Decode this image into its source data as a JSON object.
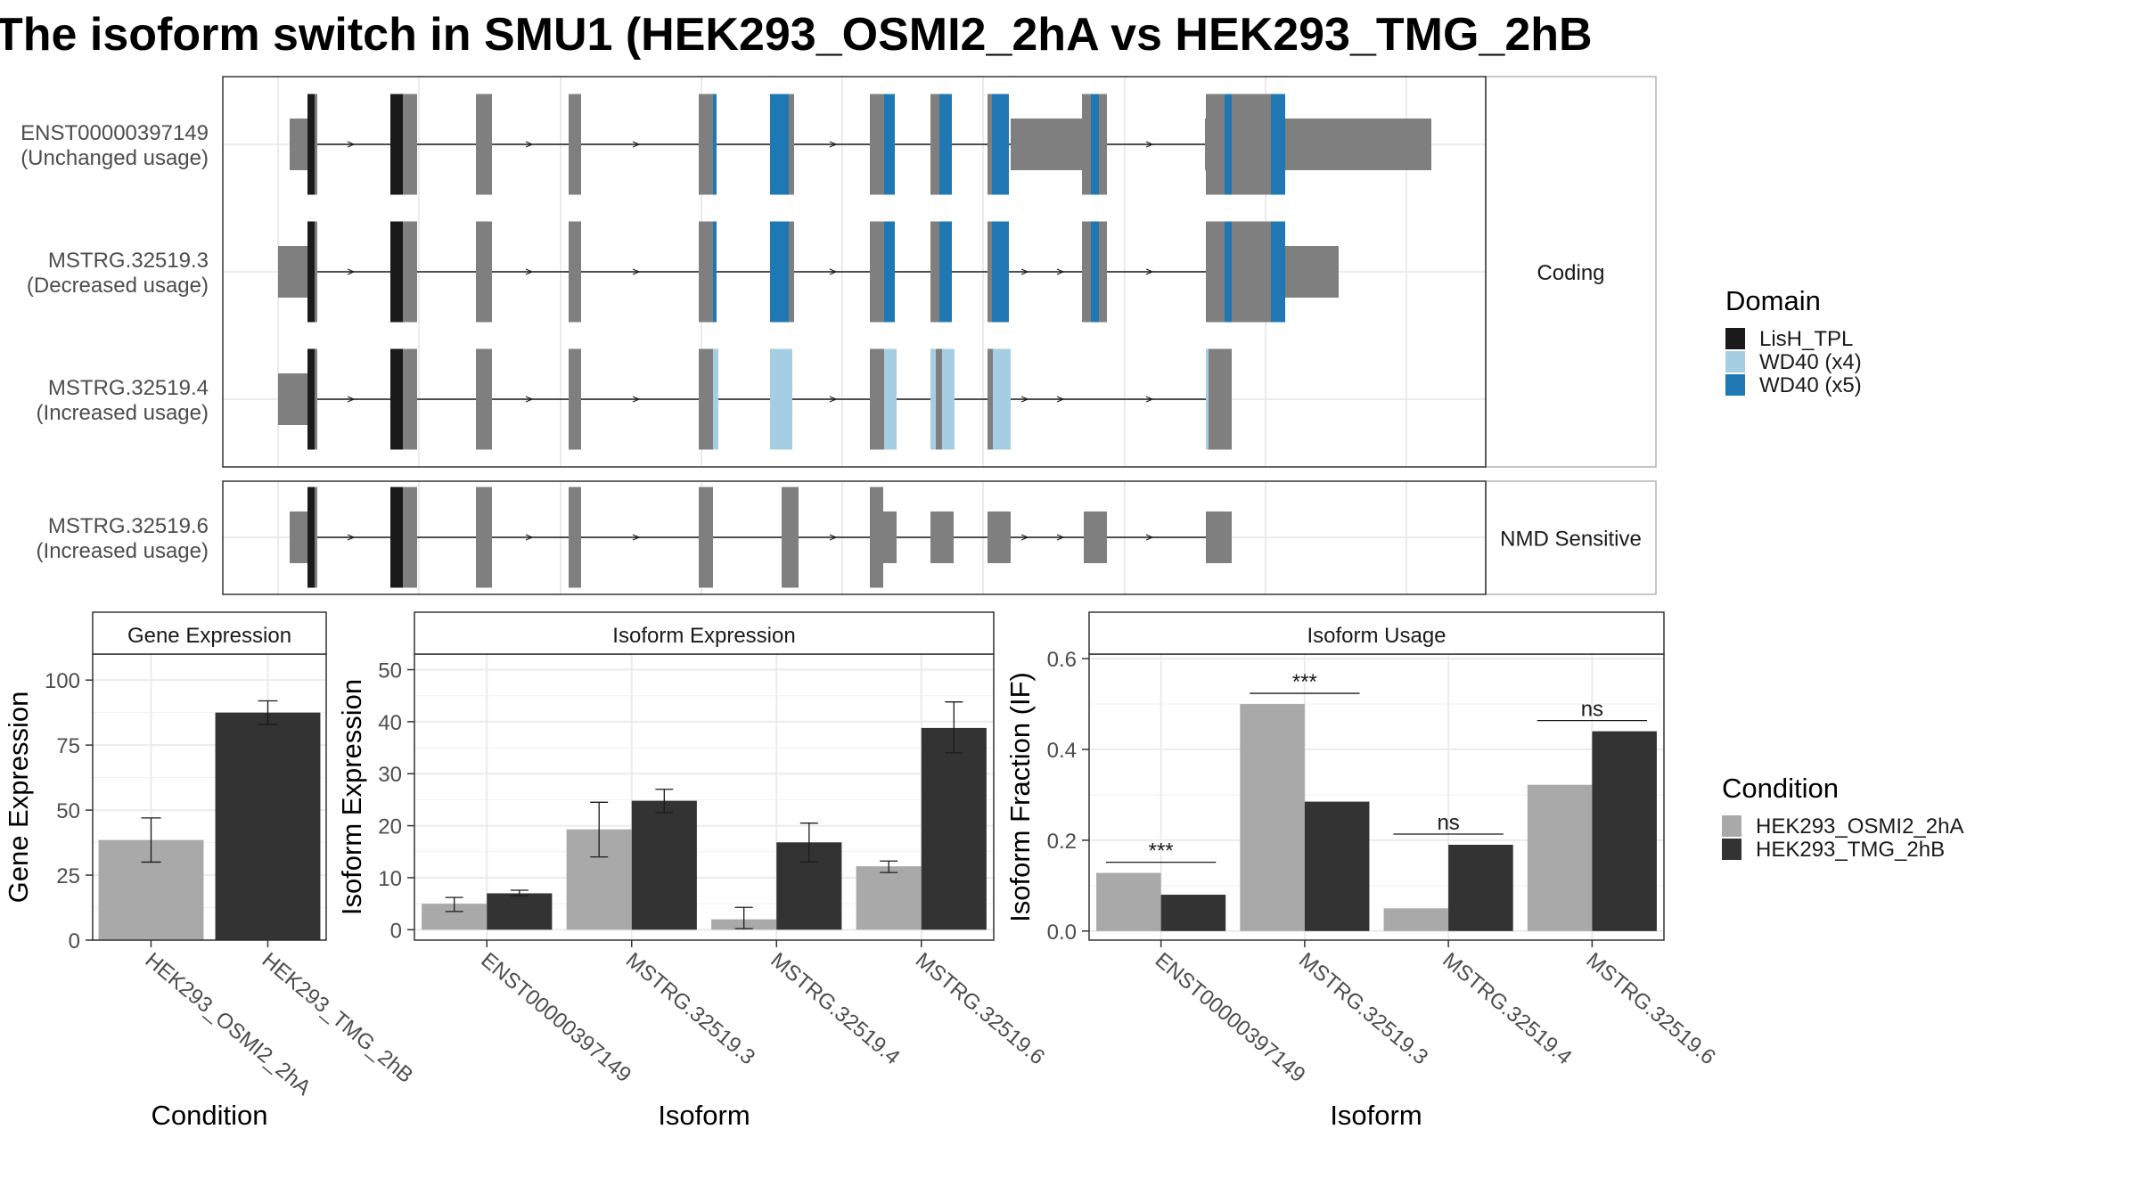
{
  "title": "The isoform switch in SMU1 (HEK293_OSMI2_2hA vs HEK293_TMG_2hB",
  "colors": {
    "exon": "#7f7f7f",
    "lish_tpl": "#1a1a1a",
    "wd40_x4": "#a6cee3",
    "wd40_x5": "#1f78b4",
    "cond_a": "#a9a9a9",
    "cond_b": "#333333"
  },
  "structure": {
    "groups": [
      {
        "label": "Coding",
        "isoforms": [
          {
            "id": "ENST00000397149",
            "usage": "(Unchanged usage)"
          },
          {
            "id": "MSTRG.32519.3",
            "usage": "(Decreased usage)"
          },
          {
            "id": "MSTRG.32519.4",
            "usage": "(Increased usage)"
          }
        ]
      },
      {
        "label": "NMD Sensitive",
        "isoforms": [
          {
            "id": "MSTRG.32519.6",
            "usage": "(Increased usage)"
          }
        ]
      }
    ]
  },
  "domain_legend": {
    "title": "Domain",
    "items": [
      {
        "label": "LisH_TPL",
        "color": "#1a1a1a"
      },
      {
        "label": "WD40 (x4)",
        "color": "#a6cee3"
      },
      {
        "label": "WD40 (x5)",
        "color": "#1f78b4"
      }
    ]
  },
  "condition_legend": {
    "title": "Condition",
    "items": [
      {
        "label": "HEK293_OSMI2_2hA",
        "color": "#a9a9a9"
      },
      {
        "label": "HEK293_TMG_2hB",
        "color": "#333333"
      }
    ]
  },
  "chart_data": [
    {
      "type": "bar",
      "title": "Gene Expression",
      "xlabel": "Condition",
      "ylabel": "Gene Expression",
      "categories": [
        "HEK293_OSMI2_2hA",
        "HEK293_TMG_2hB"
      ],
      "values": [
        38.5,
        87.5
      ],
      "errors": [
        [
          30,
          47
        ],
        [
          83,
          92
        ]
      ],
      "ylim": [
        0,
        110
      ],
      "yticks": [
        0,
        25,
        50,
        75,
        100
      ]
    },
    {
      "type": "bar",
      "title": "Isoform Expression",
      "xlabel": "Isoform",
      "ylabel": "Isoform Expression",
      "categories": [
        "ENST00000397149",
        "MSTRG.32519.3",
        "MSTRG.32519.4",
        "MSTRG.32519.6"
      ],
      "series": [
        {
          "name": "HEK293_OSMI2_2hA",
          "values": [
            5,
            19.3,
            2,
            12.2
          ],
          "errors": [
            [
              3.5,
              6.2
            ],
            [
              14,
              24.5
            ],
            [
              0.2,
              4.3
            ],
            [
              11,
              13.2
            ]
          ]
        },
        {
          "name": "HEK293_TMG_2hB",
          "values": [
            7,
            24.8,
            16.8,
            38.8
          ],
          "errors": [
            [
              6.5,
              7.6
            ],
            [
              22.5,
              27
            ],
            [
              13,
              20.5
            ],
            [
              34,
              43.8
            ]
          ]
        }
      ],
      "ylim": [
        -2,
        53
      ],
      "yticks": [
        0,
        10,
        20,
        30,
        40,
        50
      ]
    },
    {
      "type": "bar",
      "title": "Isoform Usage",
      "xlabel": "Isoform",
      "ylabel": "Isoform Fraction (IF)",
      "categories": [
        "ENST00000397149",
        "MSTRG.32519.3",
        "MSTRG.32519.4",
        "MSTRG.32519.6"
      ],
      "series": [
        {
          "name": "HEK293_OSMI2_2hA",
          "values": [
            0.128,
            0.5,
            0.05,
            0.322
          ]
        },
        {
          "name": "HEK293_TMG_2hB",
          "values": [
            0.08,
            0.285,
            0.19,
            0.44
          ]
        }
      ],
      "significance": [
        "***",
        "***",
        "ns",
        "ns"
      ],
      "ylim": [
        -0.02,
        0.61
      ],
      "yticks": [
        "0.0",
        "0.2",
        "0.4",
        "0.6"
      ]
    }
  ]
}
